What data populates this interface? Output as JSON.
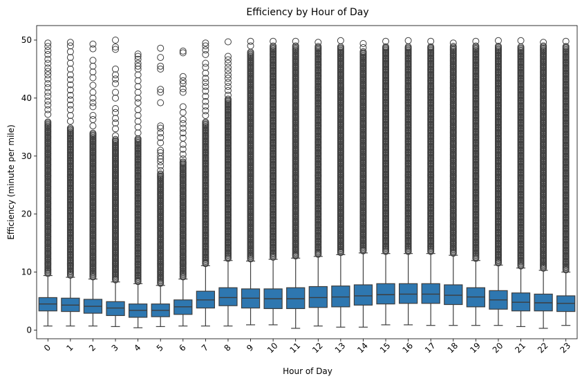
{
  "chart_data": {
    "type": "box",
    "title": "Efficiency by Hour of Day",
    "xlabel": "Hour of Day",
    "ylabel": "Efficiency (minute per mile)",
    "ylim": [
      -1.5,
      52.5
    ],
    "yticks": [
      0,
      10,
      20,
      30,
      40,
      50
    ],
    "grid": false,
    "box_color": "#2e77b0",
    "line_color": "#3d3d3d",
    "categories": [
      "0",
      "1",
      "2",
      "3",
      "4",
      "5",
      "6",
      "7",
      "8",
      "9",
      "10",
      "11",
      "12",
      "13",
      "14",
      "15",
      "16",
      "17",
      "18",
      "19",
      "20",
      "21",
      "22",
      "23"
    ],
    "boxes": [
      {
        "q1": 3.3,
        "median": 4.5,
        "q3": 5.6,
        "whisker_low": 0.7,
        "whisker_high": 9.4,
        "dense_to": 36,
        "sparse_outliers": [
          37.2,
          38.0,
          38.8,
          39.5,
          40.3,
          41.0,
          41.8,
          42.5,
          43.3,
          44.0,
          44.6,
          45.2,
          46.0,
          46.7,
          47.5,
          48.2,
          48.9,
          49.5
        ]
      },
      {
        "q1": 3.2,
        "median": 4.3,
        "q3": 5.5,
        "whisker_low": 0.7,
        "whisker_high": 9.1,
        "dense_to": 35,
        "sparse_outliers": [
          36.0,
          37.0,
          38.0,
          38.8,
          39.7,
          40.5,
          41.4,
          42.3,
          43.2,
          44.0,
          45.0,
          46.0,
          47.0,
          48.0,
          49.0,
          49.6
        ]
      },
      {
        "q1": 2.9,
        "median": 4.1,
        "q3": 5.3,
        "whisker_low": 0.7,
        "whisker_high": 8.8,
        "dense_to": 34,
        "sparse_outliers": [
          35.2,
          36.3,
          37.0,
          38.5,
          39.2,
          40.0,
          41.0,
          42.2,
          43.5,
          44.5,
          45.5,
          46.5,
          48.5,
          49.3
        ]
      },
      {
        "q1": 2.5,
        "median": 3.8,
        "q3": 4.9,
        "whisker_low": 0.6,
        "whisker_high": 8.3,
        "dense_to": 33,
        "sparse_outliers": [
          33.5,
          34.7,
          35.7,
          36.5,
          37.5,
          38.2,
          40.0,
          41.0,
          42.5,
          43.3,
          44.0,
          45.0,
          48.4,
          48.8,
          50.0
        ]
      },
      {
        "q1": 2.2,
        "median": 3.4,
        "q3": 4.5,
        "whisker_low": 0.4,
        "whisker_high": 8.0,
        "dense_to": 33,
        "sparse_outliers": [
          33.0,
          34.0,
          35.0,
          36.0,
          37.0,
          38.0,
          39.2,
          40.0,
          41.0,
          42.0,
          43.0,
          44.0,
          45.0,
          45.5,
          46.0,
          46.7,
          47.2,
          47.6
        ]
      },
      {
        "q1": 2.3,
        "median": 3.4,
        "q3": 4.5,
        "whisker_low": 0.6,
        "whisker_high": 7.7,
        "dense_to": 27,
        "sparse_outliers": [
          27.5,
          28.3,
          29.0,
          29.5,
          30.0,
          30.6,
          31.0,
          32.3,
          33.2,
          34.0,
          34.8,
          35.2,
          39.2,
          41.0,
          41.5,
          45.0,
          45.5,
          47.0,
          48.6
        ]
      },
      {
        "q1": 2.7,
        "median": 4.0,
        "q3": 5.2,
        "whisker_low": 0.7,
        "whisker_high": 8.8,
        "dense_to": 29,
        "sparse_outliers": [
          29.5,
          30.3,
          31.2,
          32.0,
          33.1,
          34.0,
          34.8,
          35.6,
          36.3,
          37.5,
          38.5,
          41.0,
          41.6,
          42.5,
          43.0,
          43.7,
          47.8,
          48.1
        ]
      },
      {
        "q1": 3.8,
        "median": 5.2,
        "q3": 6.7,
        "whisker_low": 0.7,
        "whisker_high": 11.1,
        "dense_to": 36,
        "sparse_outliers": [
          37.0,
          37.8,
          38.6,
          39.4,
          40.3,
          41.2,
          42.0,
          42.7,
          43.4,
          44.3,
          45.3,
          46.0,
          47.5,
          48.3,
          49.0,
          49.5
        ]
      },
      {
        "q1": 4.2,
        "median": 5.6,
        "q3": 7.3,
        "whisker_low": 0.7,
        "whisker_high": 12.0,
        "dense_to": 40,
        "sparse_outliers": [
          40.5,
          41.3,
          42.0,
          42.7,
          43.4,
          44.0,
          44.7,
          45.3,
          46.0,
          46.6,
          47.2,
          49.7
        ]
      },
      {
        "q1": 3.8,
        "median": 5.5,
        "q3": 7.1,
        "whisker_low": 0.9,
        "whisker_high": 11.9,
        "dense_to": 48,
        "sparse_outliers": [
          49.0,
          49.8
        ]
      },
      {
        "q1": 3.7,
        "median": 5.4,
        "q3": 7.1,
        "whisker_low": 0.9,
        "whisker_high": 12.2,
        "dense_to": 49,
        "sparse_outliers": [
          49.8
        ]
      },
      {
        "q1": 3.7,
        "median": 5.4,
        "q3": 7.3,
        "whisker_low": 0.3,
        "whisker_high": 12.4,
        "dense_to": 49,
        "sparse_outliers": [
          49.8
        ]
      },
      {
        "q1": 3.9,
        "median": 5.6,
        "q3": 7.5,
        "whisker_low": 0.7,
        "whisker_high": 12.7,
        "dense_to": 49,
        "sparse_outliers": [
          49.6
        ]
      },
      {
        "q1": 4.0,
        "median": 5.7,
        "q3": 7.6,
        "whisker_low": 0.5,
        "whisker_high": 13.0,
        "dense_to": 49,
        "sparse_outliers": [
          49.9
        ]
      },
      {
        "q1": 4.3,
        "median": 5.9,
        "q3": 7.8,
        "whisker_low": 0.5,
        "whisker_high": 13.3,
        "dense_to": 48,
        "sparse_outliers": [
          48.7,
          49.4
        ]
      },
      {
        "q1": 4.5,
        "median": 6.1,
        "q3": 8.0,
        "whisker_low": 0.9,
        "whisker_high": 13.2,
        "dense_to": 49,
        "sparse_outliers": [
          49.8
        ]
      },
      {
        "q1": 4.6,
        "median": 6.2,
        "q3": 8.0,
        "whisker_low": 0.9,
        "whisker_high": 13.2,
        "dense_to": 49,
        "sparse_outliers": [
          49.9
        ]
      },
      {
        "q1": 4.6,
        "median": 6.2,
        "q3": 8.0,
        "whisker_low": 0.8,
        "whisker_high": 13.2,
        "dense_to": 49,
        "sparse_outliers": [
          49.8
        ]
      },
      {
        "q1": 4.4,
        "median": 6.0,
        "q3": 7.8,
        "whisker_low": 0.8,
        "whisker_high": 12.9,
        "dense_to": 49,
        "sparse_outliers": [
          49.5
        ]
      },
      {
        "q1": 4.0,
        "median": 5.7,
        "q3": 7.3,
        "whisker_low": 0.8,
        "whisker_high": 12.0,
        "dense_to": 49,
        "sparse_outliers": [
          49.8
        ]
      },
      {
        "q1": 3.6,
        "median": 5.2,
        "q3": 6.8,
        "whisker_low": 0.8,
        "whisker_high": 11.2,
        "dense_to": 49,
        "sparse_outliers": [
          49.9
        ]
      },
      {
        "q1": 3.3,
        "median": 4.8,
        "q3": 6.4,
        "whisker_low": 0.6,
        "whisker_high": 10.7,
        "dense_to": 49,
        "sparse_outliers": [
          49.9
        ]
      },
      {
        "q1": 3.3,
        "median": 4.7,
        "q3": 6.2,
        "whisker_low": 0.3,
        "whisker_high": 10.3,
        "dense_to": 49,
        "sparse_outliers": [
          49.6
        ]
      },
      {
        "q1": 3.2,
        "median": 4.6,
        "q3": 5.9,
        "whisker_low": 0.8,
        "whisker_high": 10.0,
        "dense_to": 49,
        "sparse_outliers": [
          49.8
        ]
      }
    ]
  }
}
